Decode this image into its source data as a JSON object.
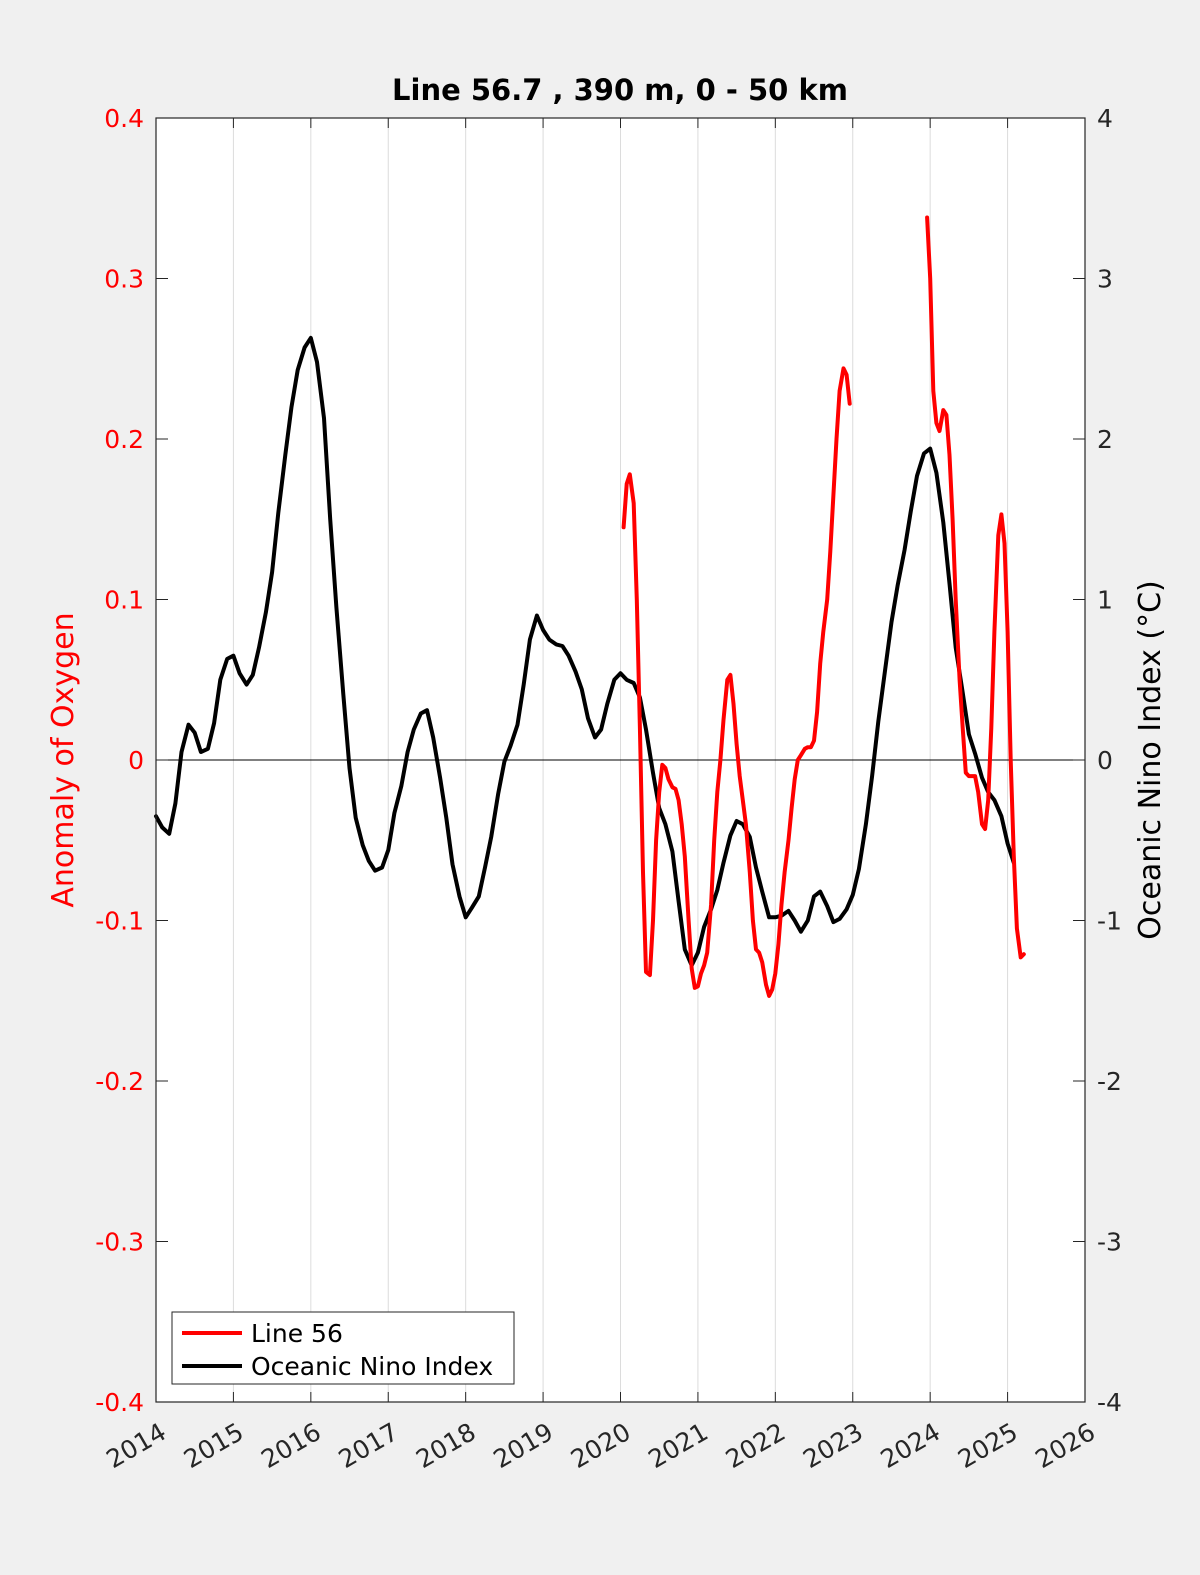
{
  "chart_data": {
    "type": "line",
    "title": "Line 56.7 , 390 m, 0 - 50 km",
    "xlim": [
      2014,
      2026
    ],
    "x_ticks": [
      "2014",
      "2015",
      "2016",
      "2017",
      "2018",
      "2019",
      "2020",
      "2021",
      "2022",
      "2023",
      "2024",
      "2025",
      "2026"
    ],
    "x_ticks_values": [
      2014,
      2015,
      2016,
      2017,
      2018,
      2019,
      2020,
      2021,
      2022,
      2023,
      2024,
      2025,
      2026
    ],
    "left_axis": {
      "label": "Anomaly of Oxygen",
      "lim": [
        -0.4,
        0.4
      ],
      "ticks": [
        "0.4",
        "0.3",
        "0.2",
        "0.1",
        "0",
        "-0.1",
        "-0.2",
        "-0.3",
        "-0.4"
      ],
      "ticks_values": [
        0.4,
        0.3,
        0.2,
        0.1,
        0,
        -0.1,
        -0.2,
        -0.3,
        -0.4
      ],
      "color": "#ff0000"
    },
    "right_axis": {
      "label": "Oceanic Nino Index (°C)",
      "lim": [
        -4,
        4
      ],
      "ticks": [
        "4",
        "3",
        "2",
        "1",
        "0",
        "-1",
        "-2",
        "-3",
        "-4"
      ],
      "ticks_values": [
        4,
        3,
        2,
        1,
        0,
        -1,
        -2,
        -3,
        -4
      ],
      "color": "#000000"
    },
    "grid": "vertical",
    "zero_line": true,
    "legend_position": "bottom-left",
    "series": [
      {
        "name": "Line 56",
        "axis": "left",
        "color": "#ff0000",
        "segments": [
          [
            [
              2020.04,
              0.145
            ],
            [
              2020.08,
              0.172
            ],
            [
              2020.12,
              0.178
            ],
            [
              2020.17,
              0.16
            ],
            [
              2020.21,
              0.1
            ],
            [
              2020.25,
              0.02
            ],
            [
              2020.29,
              -0.07
            ],
            [
              2020.33,
              -0.132
            ],
            [
              2020.38,
              -0.134
            ],
            [
              2020.42,
              -0.1
            ],
            [
              2020.46,
              -0.05
            ],
            [
              2020.5,
              -0.02
            ],
            [
              2020.54,
              -0.003
            ],
            [
              2020.58,
              -0.005
            ],
            [
              2020.62,
              -0.012
            ],
            [
              2020.67,
              -0.017
            ],
            [
              2020.71,
              -0.018
            ],
            [
              2020.75,
              -0.025
            ],
            [
              2020.79,
              -0.04
            ],
            [
              2020.83,
              -0.06
            ],
            [
              2020.88,
              -0.1
            ],
            [
              2020.92,
              -0.13
            ],
            [
              2020.96,
              -0.142
            ],
            [
              2021.0,
              -0.141
            ],
            [
              2021.04,
              -0.133
            ],
            [
              2021.08,
              -0.128
            ],
            [
              2021.12,
              -0.12
            ],
            [
              2021.17,
              -0.09
            ],
            [
              2021.21,
              -0.05
            ],
            [
              2021.25,
              -0.02
            ],
            [
              2021.29,
              0.0
            ],
            [
              2021.33,
              0.025
            ],
            [
              2021.38,
              0.05
            ],
            [
              2021.42,
              0.053
            ],
            [
              2021.46,
              0.035
            ],
            [
              2021.5,
              0.01
            ],
            [
              2021.54,
              -0.01
            ],
            [
              2021.58,
              -0.025
            ],
            [
              2021.62,
              -0.04
            ],
            [
              2021.67,
              -0.07
            ],
            [
              2021.71,
              -0.1
            ],
            [
              2021.75,
              -0.118
            ],
            [
              2021.79,
              -0.12
            ],
            [
              2021.83,
              -0.126
            ],
            [
              2021.88,
              -0.14
            ],
            [
              2021.92,
              -0.147
            ],
            [
              2021.96,
              -0.143
            ],
            [
              2022.0,
              -0.133
            ],
            [
              2022.04,
              -0.115
            ],
            [
              2022.08,
              -0.09
            ],
            [
              2022.12,
              -0.07
            ],
            [
              2022.17,
              -0.05
            ],
            [
              2022.21,
              -0.03
            ],
            [
              2022.25,
              -0.012
            ],
            [
              2022.29,
              0.0
            ],
            [
              2022.33,
              0.003
            ],
            [
              2022.38,
              0.007
            ],
            [
              2022.42,
              0.008
            ],
            [
              2022.46,
              0.008
            ],
            [
              2022.5,
              0.012
            ],
            [
              2022.54,
              0.03
            ],
            [
              2022.58,
              0.06
            ],
            [
              2022.62,
              0.08
            ],
            [
              2022.67,
              0.1
            ],
            [
              2022.71,
              0.13
            ],
            [
              2022.75,
              0.165
            ],
            [
              2022.79,
              0.2
            ],
            [
              2022.83,
              0.23
            ],
            [
              2022.88,
              0.244
            ],
            [
              2022.92,
              0.24
            ],
            [
              2022.96,
              0.222
            ]
          ],
          [
            [
              2023.96,
              0.338
            ],
            [
              2024.0,
              0.3
            ],
            [
              2024.04,
              0.23
            ],
            [
              2024.08,
              0.21
            ],
            [
              2024.12,
              0.205
            ],
            [
              2024.17,
              0.218
            ],
            [
              2024.21,
              0.215
            ],
            [
              2024.25,
              0.19
            ],
            [
              2024.29,
              0.15
            ],
            [
              2024.33,
              0.1
            ],
            [
              2024.38,
              0.05
            ],
            [
              2024.42,
              0.02
            ],
            [
              2024.46,
              -0.008
            ],
            [
              2024.5,
              -0.01
            ],
            [
              2024.54,
              -0.01
            ],
            [
              2024.58,
              -0.01
            ],
            [
              2024.62,
              -0.02
            ],
            [
              2024.67,
              -0.04
            ],
            [
              2024.71,
              -0.043
            ],
            [
              2024.75,
              -0.025
            ],
            [
              2024.79,
              0.02
            ],
            [
              2024.83,
              0.08
            ],
            [
              2024.88,
              0.14
            ],
            [
              2024.92,
              0.153
            ],
            [
              2024.96,
              0.135
            ],
            [
              2025.0,
              0.08
            ],
            [
              2025.04,
              0.0
            ],
            [
              2025.08,
              -0.06
            ],
            [
              2025.12,
              -0.105
            ],
            [
              2025.17,
              -0.123
            ],
            [
              2025.21,
              -0.121
            ]
          ]
        ]
      },
      {
        "name": "Oceanic Nino Index",
        "axis": "right",
        "color": "#000000",
        "segments": [
          [
            [
              2014.0,
              -0.35
            ],
            [
              2014.08,
              -0.42
            ],
            [
              2014.17,
              -0.46
            ],
            [
              2014.25,
              -0.27
            ],
            [
              2014.33,
              0.05
            ],
            [
              2014.42,
              0.22
            ],
            [
              2014.5,
              0.17
            ],
            [
              2014.58,
              0.05
            ],
            [
              2014.67,
              0.07
            ],
            [
              2014.75,
              0.23
            ],
            [
              2014.83,
              0.5
            ],
            [
              2014.92,
              0.63
            ],
            [
              2015.0,
              0.65
            ],
            [
              2015.08,
              0.54
            ],
            [
              2015.17,
              0.47
            ],
            [
              2015.25,
              0.53
            ],
            [
              2015.33,
              0.7
            ],
            [
              2015.42,
              0.92
            ],
            [
              2015.5,
              1.17
            ],
            [
              2015.58,
              1.54
            ],
            [
              2015.67,
              1.9
            ],
            [
              2015.75,
              2.2
            ],
            [
              2015.83,
              2.43
            ],
            [
              2015.92,
              2.57
            ],
            [
              2016.0,
              2.63
            ],
            [
              2016.08,
              2.48
            ],
            [
              2016.17,
              2.13
            ],
            [
              2016.25,
              1.5
            ],
            [
              2016.33,
              0.95
            ],
            [
              2016.42,
              0.41
            ],
            [
              2016.5,
              -0.05
            ],
            [
              2016.58,
              -0.36
            ],
            [
              2016.67,
              -0.53
            ],
            [
              2016.75,
              -0.63
            ],
            [
              2016.83,
              -0.69
            ],
            [
              2016.92,
              -0.67
            ],
            [
              2017.0,
              -0.56
            ],
            [
              2017.08,
              -0.33
            ],
            [
              2017.17,
              -0.16
            ],
            [
              2017.25,
              0.05
            ],
            [
              2017.33,
              0.19
            ],
            [
              2017.42,
              0.29
            ],
            [
              2017.5,
              0.31
            ],
            [
              2017.58,
              0.14
            ],
            [
              2017.67,
              -0.11
            ],
            [
              2017.75,
              -0.36
            ],
            [
              2017.83,
              -0.65
            ],
            [
              2017.92,
              -0.85
            ],
            [
              2018.0,
              -0.98
            ],
            [
              2018.08,
              -0.92
            ],
            [
              2018.17,
              -0.85
            ],
            [
              2018.25,
              -0.67
            ],
            [
              2018.33,
              -0.48
            ],
            [
              2018.42,
              -0.21
            ],
            [
              2018.5,
              -0.01
            ],
            [
              2018.58,
              0.09
            ],
            [
              2018.67,
              0.22
            ],
            [
              2018.75,
              0.47
            ],
            [
              2018.83,
              0.75
            ],
            [
              2018.92,
              0.9
            ],
            [
              2019.0,
              0.81
            ],
            [
              2019.08,
              0.75
            ],
            [
              2019.17,
              0.72
            ],
            [
              2019.25,
              0.71
            ],
            [
              2019.33,
              0.65
            ],
            [
              2019.42,
              0.55
            ],
            [
              2019.5,
              0.44
            ],
            [
              2019.58,
              0.26
            ],
            [
              2019.67,
              0.14
            ],
            [
              2019.75,
              0.19
            ],
            [
              2019.83,
              0.35
            ],
            [
              2019.92,
              0.5
            ],
            [
              2020.0,
              0.54
            ],
            [
              2020.08,
              0.5
            ],
            [
              2020.17,
              0.48
            ],
            [
              2020.25,
              0.39
            ],
            [
              2020.33,
              0.19
            ],
            [
              2020.42,
              -0.08
            ],
            [
              2020.5,
              -0.3
            ],
            [
              2020.58,
              -0.4
            ],
            [
              2020.67,
              -0.57
            ],
            [
              2020.75,
              -0.88
            ],
            [
              2020.83,
              -1.18
            ],
            [
              2020.92,
              -1.28
            ],
            [
              2021.0,
              -1.2
            ],
            [
              2021.08,
              -1.04
            ],
            [
              2021.17,
              -0.93
            ],
            [
              2021.25,
              -0.81
            ],
            [
              2021.33,
              -0.64
            ],
            [
              2021.42,
              -0.47
            ],
            [
              2021.5,
              -0.38
            ],
            [
              2021.58,
              -0.4
            ],
            [
              2021.67,
              -0.48
            ],
            [
              2021.75,
              -0.67
            ],
            [
              2021.83,
              -0.82
            ],
            [
              2021.92,
              -0.98
            ],
            [
              2022.0,
              -0.98
            ],
            [
              2022.08,
              -0.97
            ],
            [
              2022.17,
              -0.94
            ],
            [
              2022.25,
              -1.0
            ],
            [
              2022.33,
              -1.07
            ],
            [
              2022.42,
              -1.0
            ],
            [
              2022.5,
              -0.85
            ],
            [
              2022.58,
              -0.82
            ],
            [
              2022.67,
              -0.91
            ],
            [
              2022.75,
              -1.01
            ],
            [
              2022.83,
              -0.99
            ],
            [
              2022.92,
              -0.93
            ],
            [
              2023.0,
              -0.84
            ],
            [
              2023.08,
              -0.68
            ],
            [
              2023.17,
              -0.4
            ],
            [
              2023.25,
              -0.1
            ],
            [
              2023.33,
              0.24
            ],
            [
              2023.42,
              0.57
            ],
            [
              2023.5,
              0.86
            ],
            [
              2023.58,
              1.09
            ],
            [
              2023.67,
              1.31
            ],
            [
              2023.75,
              1.55
            ],
            [
              2023.83,
              1.77
            ],
            [
              2023.92,
              1.91
            ],
            [
              2024.0,
              1.94
            ],
            [
              2024.08,
              1.79
            ],
            [
              2024.17,
              1.48
            ],
            [
              2024.25,
              1.1
            ],
            [
              2024.33,
              0.7
            ],
            [
              2024.42,
              0.42
            ],
            [
              2024.5,
              0.16
            ],
            [
              2024.58,
              0.04
            ],
            [
              2024.67,
              -0.11
            ],
            [
              2024.75,
              -0.2
            ],
            [
              2024.83,
              -0.25
            ],
            [
              2024.92,
              -0.35
            ],
            [
              2025.0,
              -0.52
            ],
            [
              2025.08,
              -0.64
            ]
          ]
        ]
      }
    ]
  }
}
